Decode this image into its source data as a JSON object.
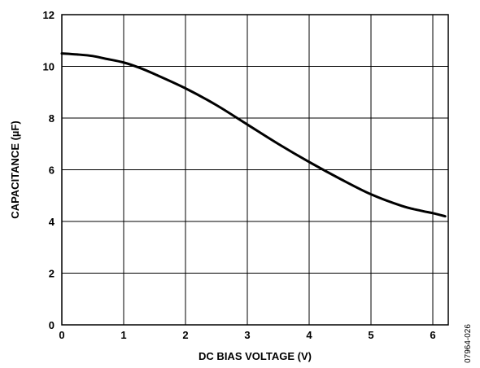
{
  "chart_data": {
    "type": "line",
    "title": "",
    "xlabel": "DC BIAS VOLTAGE (V)",
    "ylabel": "CAPACITANCE (µF)",
    "xlim": [
      0,
      6.25
    ],
    "ylim": [
      0,
      12
    ],
    "xticks": [
      0,
      1,
      2,
      3,
      4,
      5,
      6
    ],
    "yticks": [
      0,
      2,
      4,
      6,
      8,
      10,
      12
    ],
    "grid": true,
    "legend": "none",
    "series": [
      {
        "x": [
          0,
          0.25,
          0.5,
          0.7,
          1.0,
          1.25,
          1.5,
          2.0,
          2.5,
          3.0,
          3.5,
          4.0,
          4.5,
          5.0,
          5.5,
          5.8,
          6.0,
          6.2
        ],
        "y": [
          10.5,
          10.46,
          10.4,
          10.3,
          10.15,
          9.95,
          9.7,
          9.15,
          8.5,
          7.75,
          7.0,
          6.3,
          5.65,
          5.05,
          4.6,
          4.42,
          4.32,
          4.2
        ]
      }
    ],
    "figure_code": "07964-026",
    "line_color": "#000000",
    "grid_color": "#000000"
  }
}
